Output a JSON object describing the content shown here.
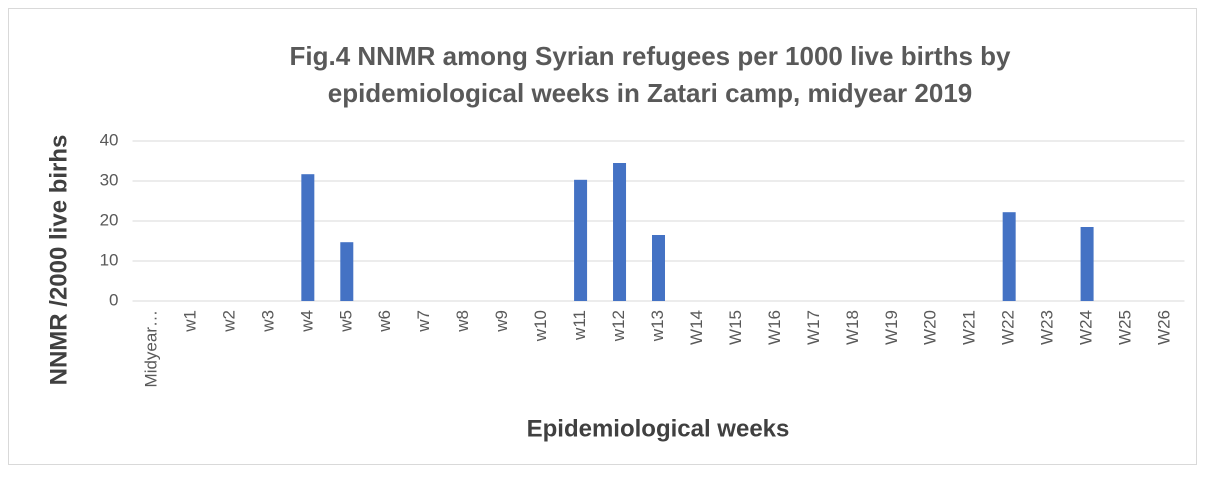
{
  "chart_data": {
    "type": "bar",
    "title": [
      "Fig.4 NNMR among Syrian refugees per 1000 live births by",
      "epidemiological weeks  in Zatari camp, midyear 2019"
    ],
    "y_label": "NNMR /2000 live birhs",
    "x_label": "Epidemiological weeks",
    "categories": [
      "Midyear…",
      "w1",
      "w2",
      "w3",
      "w4",
      "w5",
      "w6",
      "w7",
      "w8",
      "w9",
      "w10",
      "w11",
      "w12",
      "w13",
      "W14",
      "W15",
      "W16",
      "W17",
      "W18",
      "W19",
      "W20",
      "W21",
      "W22",
      "W23",
      "W24",
      "W25",
      "W26"
    ],
    "values": [
      0,
      0,
      0,
      0,
      31.7,
      14.7,
      0,
      0,
      0,
      0,
      0,
      30.3,
      34.5,
      16.5,
      0,
      0,
      0,
      0,
      0,
      0,
      0,
      0,
      22.2,
      0,
      18.5,
      0,
      0
    ],
    "color": "#4472c4",
    "ylim": [
      0,
      40
    ],
    "yticks": [
      0,
      10,
      20,
      30,
      40
    ],
    "grid": true
  }
}
